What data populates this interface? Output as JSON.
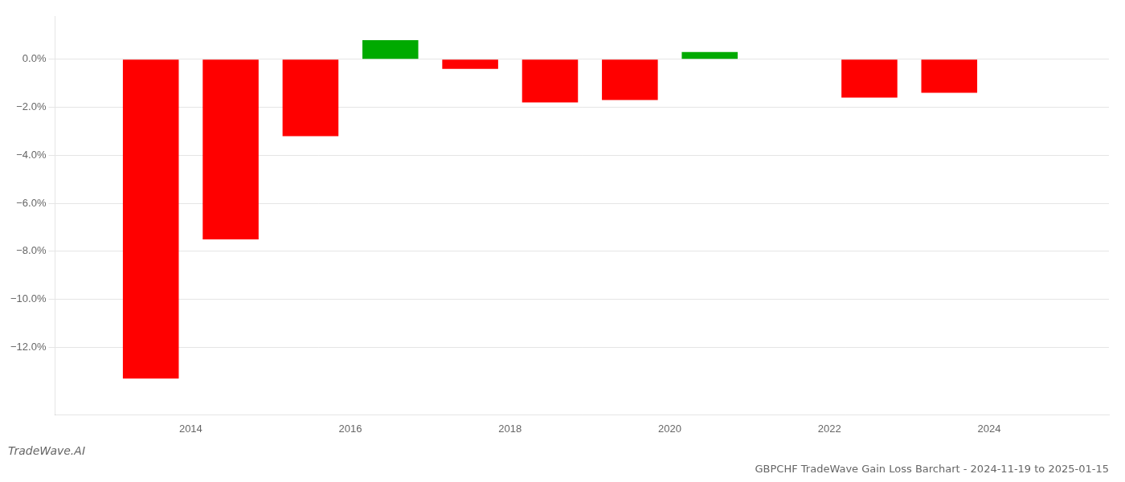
{
  "chart_data": {
    "type": "bar",
    "title": "GBPCHF TradeWave Gain Loss Barchart - 2024-11-19 to 2025-01-15",
    "subtitle": "TradeWave.AI",
    "x": [
      2013.5,
      2014.5,
      2015.5,
      2016.5,
      2017.5,
      2018.5,
      2019.5,
      2020.5,
      2022.5,
      2023.5
    ],
    "values": [
      -0.133,
      -0.075,
      -0.032,
      0.008,
      -0.004,
      -0.018,
      -0.017,
      0.003,
      -0.016,
      -0.014
    ],
    "colors": [
      "#ff0000",
      "#ff0000",
      "#ff0000",
      "#00aa00",
      "#ff0000",
      "#ff0000",
      "#ff0000",
      "#00aa00",
      "#ff0000",
      "#ff0000"
    ],
    "xlim": [
      2012.3,
      2025.5
    ],
    "xticks": [
      2014,
      2016,
      2018,
      2020,
      2022,
      2024
    ],
    "ylim": [
      -0.148,
      0.018
    ],
    "yticks": [
      {
        "value": 0.0,
        "label": "0.0%"
      },
      {
        "value": -0.02,
        "label": "−2.0%"
      },
      {
        "value": -0.04,
        "label": "−4.0%"
      },
      {
        "value": -0.06,
        "label": "−6.0%"
      },
      {
        "value": -0.08,
        "label": "−8.0%"
      },
      {
        "value": -0.1,
        "label": "−10.0%"
      },
      {
        "value": -0.12,
        "label": "−12.0%"
      }
    ],
    "grid": "y"
  }
}
